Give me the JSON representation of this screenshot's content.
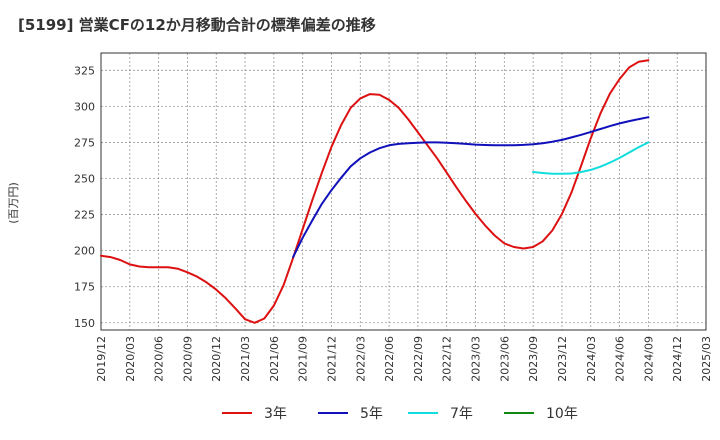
{
  "chart_data": {
    "type": "line",
    "title": "[5199]  営業CFの12か月移動合計の標準偏差の推移",
    "ylabel": "(百万円)",
    "xlabel": "",
    "ylim": [
      145,
      337
    ],
    "yticks": [
      150,
      175,
      200,
      225,
      250,
      275,
      300,
      325
    ],
    "x_tick_labels": [
      "2019/12",
      "2020/03",
      "2020/06",
      "2020/09",
      "2020/12",
      "2021/03",
      "2021/06",
      "2021/09",
      "2021/12",
      "2022/03",
      "2022/06",
      "2022/09",
      "2022/12",
      "2023/03",
      "2023/06",
      "2023/09",
      "2023/12",
      "2024/03",
      "2024/06",
      "2024/09",
      "2024/12",
      "2025/03"
    ],
    "grid": true,
    "legend_position": "bottom",
    "series": [
      {
        "name": "3年",
        "color": "#dd1111",
        "points": [
          [
            "2019/12",
            196.5
          ],
          [
            "2020/01",
            195.5
          ],
          [
            "2020/02",
            193.5
          ],
          [
            "2020/03",
            190.5
          ],
          [
            "2020/04",
            189
          ],
          [
            "2020/05",
            188.5
          ],
          [
            "2020/06",
            188.5
          ],
          [
            "2020/07",
            188.5
          ],
          [
            "2020/08",
            187.5
          ],
          [
            "2020/09",
            185
          ],
          [
            "2020/10",
            182
          ],
          [
            "2020/11",
            178
          ],
          [
            "2020/12",
            173
          ],
          [
            "2021/01",
            167
          ],
          [
            "2021/02",
            160
          ],
          [
            "2021/03",
            152.5
          ],
          [
            "2021/04",
            150
          ],
          [
            "2021/05",
            153
          ],
          [
            "2021/06",
            162
          ],
          [
            "2021/07",
            176
          ],
          [
            "2021/08",
            195
          ],
          [
            "2021/09",
            215
          ],
          [
            "2021/10",
            235
          ],
          [
            "2021/11",
            254
          ],
          [
            "2021/12",
            272
          ],
          [
            "2022/01",
            287
          ],
          [
            "2022/02",
            299
          ],
          [
            "2022/03",
            305.5
          ],
          [
            "2022/04",
            308.5
          ],
          [
            "2022/05",
            308
          ],
          [
            "2022/06",
            304.5
          ],
          [
            "2022/07",
            299
          ],
          [
            "2022/08",
            291
          ],
          [
            "2022/09",
            282
          ],
          [
            "2022/10",
            273
          ],
          [
            "2022/11",
            264
          ],
          [
            "2022/12",
            254
          ],
          [
            "2023/01",
            244
          ],
          [
            "2023/02",
            234.5
          ],
          [
            "2023/03",
            225.5
          ],
          [
            "2023/04",
            217.5
          ],
          [
            "2023/05",
            210.5
          ],
          [
            "2023/06",
            205
          ],
          [
            "2023/07",
            202.5
          ],
          [
            "2023/08",
            201.5
          ],
          [
            "2023/09",
            202.5
          ],
          [
            "2023/10",
            206.5
          ],
          [
            "2023/11",
            214
          ],
          [
            "2023/12",
            225.5
          ],
          [
            "2024/01",
            240.5
          ],
          [
            "2024/02",
            259
          ],
          [
            "2024/03",
            278
          ],
          [
            "2024/04",
            295
          ],
          [
            "2024/05",
            309
          ],
          [
            "2024/06",
            319
          ],
          [
            "2024/07",
            327
          ],
          [
            "2024/08",
            331
          ],
          [
            "2024/09",
            332
          ]
        ]
      },
      {
        "name": "5年",
        "color": "#1111bb",
        "points": [
          [
            "2021/08",
            195.5
          ],
          [
            "2021/09",
            209
          ],
          [
            "2021/10",
            221
          ],
          [
            "2021/11",
            232.5
          ],
          [
            "2021/12",
            242
          ],
          [
            "2022/01",
            250.5
          ],
          [
            "2022/02",
            258.5
          ],
          [
            "2022/03",
            264
          ],
          [
            "2022/04",
            268
          ],
          [
            "2022/05",
            271
          ],
          [
            "2022/06",
            273
          ],
          [
            "2022/07",
            274
          ],
          [
            "2022/08",
            274.5
          ],
          [
            "2022/09",
            274.8
          ],
          [
            "2022/10",
            275
          ],
          [
            "2022/11",
            275
          ],
          [
            "2022/12",
            274.8
          ],
          [
            "2023/01",
            274.5
          ],
          [
            "2023/02",
            274
          ],
          [
            "2023/03",
            273.5
          ],
          [
            "2023/04",
            273.2
          ],
          [
            "2023/05",
            273
          ],
          [
            "2023/06",
            273
          ],
          [
            "2023/07",
            273
          ],
          [
            "2023/08",
            273.3
          ],
          [
            "2023/09",
            273.8
          ],
          [
            "2023/10",
            274.5
          ],
          [
            "2023/11",
            275.5
          ],
          [
            "2023/12",
            276.8
          ],
          [
            "2024/01",
            278.5
          ],
          [
            "2024/02",
            280.3
          ],
          [
            "2024/03",
            282.3
          ],
          [
            "2024/04",
            284.3
          ],
          [
            "2024/05",
            286.3
          ],
          [
            "2024/06",
            288.2
          ],
          [
            "2024/07",
            289.8
          ],
          [
            "2024/08",
            291.2
          ],
          [
            "2024/09",
            292.5
          ]
        ]
      },
      {
        "name": "7年",
        "color": "#11dddd",
        "points": [
          [
            "2023/09",
            254.5
          ],
          [
            "2023/10",
            253.8
          ],
          [
            "2023/11",
            253.3
          ],
          [
            "2023/12",
            253.3
          ],
          [
            "2024/01",
            253.5
          ],
          [
            "2024/02",
            254.5
          ],
          [
            "2024/03",
            256
          ],
          [
            "2024/04",
            258.2
          ],
          [
            "2024/05",
            261
          ],
          [
            "2024/06",
            264.3
          ],
          [
            "2024/07",
            268
          ],
          [
            "2024/08",
            271.8
          ],
          [
            "2024/09",
            275
          ]
        ]
      },
      {
        "name": "10年",
        "color": "#118811",
        "points": []
      }
    ]
  }
}
